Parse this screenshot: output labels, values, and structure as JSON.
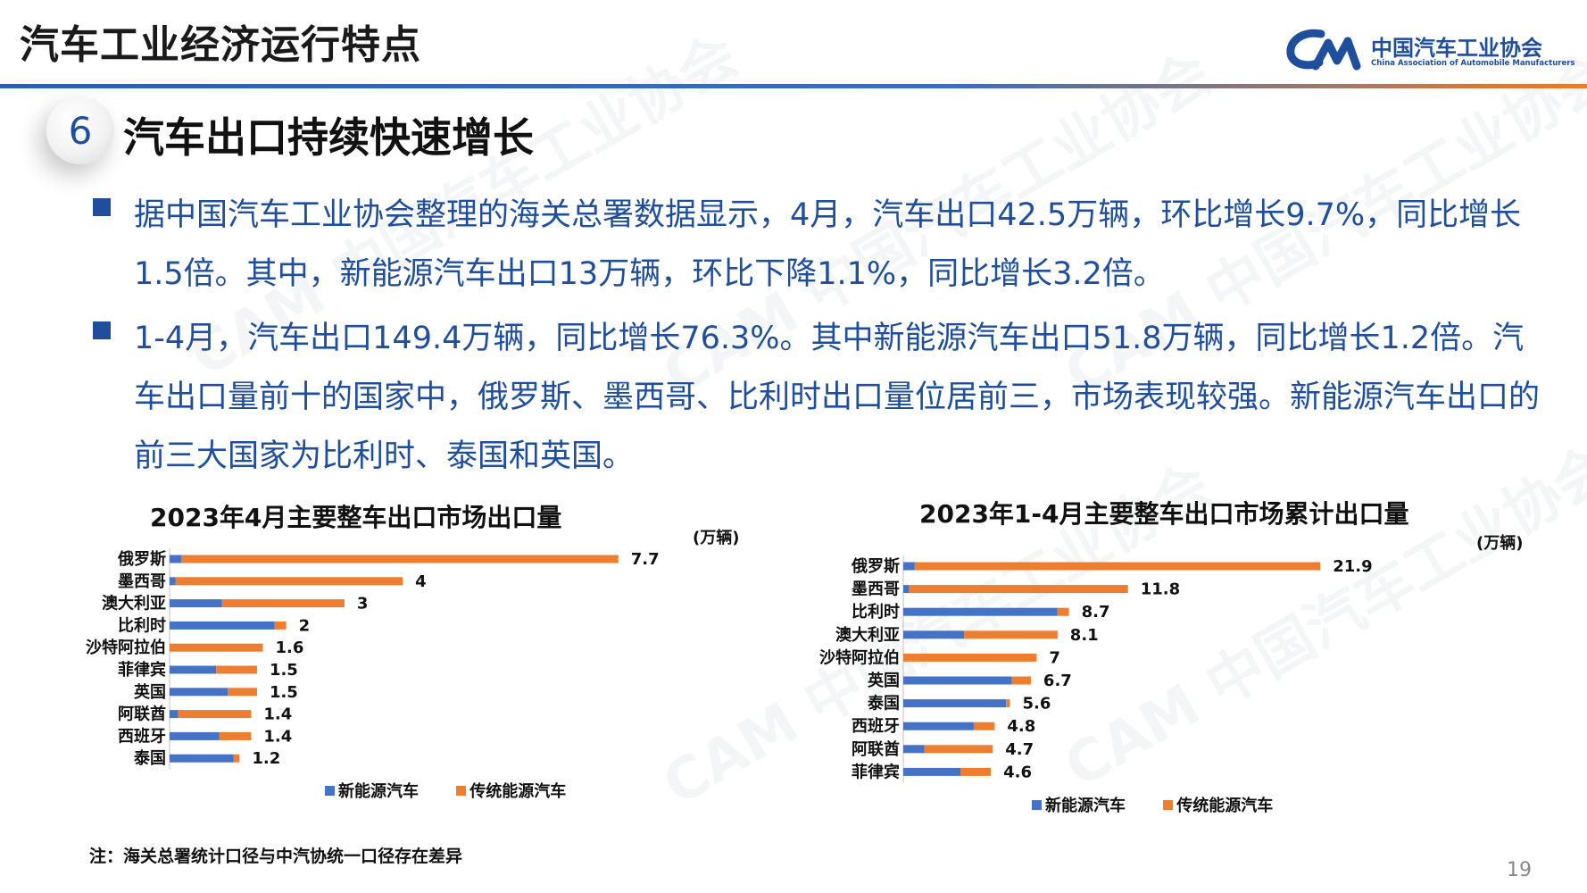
{
  "header": {
    "title": "汽车工业经济运行特点"
  },
  "logo": {
    "cn": "中国汽车工业协会",
    "en": "China Association of Automobile Manufacturers"
  },
  "section": {
    "number": "6",
    "title": "汽车出口持续快速增长"
  },
  "paragraphs": [
    "据中国汽车工业协会整理的海关总署数据显示，4月，汽车出口42.5万辆，环比增长9.7%，同比增长1.5倍。其中，新能源汽车出口13万辆，环比下降1.1%，同比增长3.2倍。",
    "1-4月，汽车出口149.4万辆，同比增长76.3%。其中新能源汽车出口51.8万辆，同比增长1.2倍。汽车出口量前十的国家中，俄罗斯、墨西哥、比利时出口量位居前三，市场表现较强。新能源汽车出口的前三大国家为比利时、泰国和英国。"
  ],
  "chart_data": [
    {
      "type": "bar",
      "orientation": "horizontal",
      "stacked": true,
      "title": "2023年4月主要整车出口市场出口量",
      "unit": "(万辆)",
      "categories": [
        "俄罗斯",
        "墨西哥",
        "澳大利亚",
        "比利时",
        "沙特阿拉伯",
        "菲律宾",
        "英国",
        "阿联酋",
        "西班牙",
        "泰国"
      ],
      "totals": [
        7.7,
        4,
        3,
        2,
        1.6,
        1.5,
        1.5,
        1.4,
        1.4,
        1.2
      ],
      "series": [
        {
          "name": "新能源汽车",
          "color": "#4472c4",
          "values": [
            0.2,
            0.1,
            0.9,
            1.8,
            0.0,
            0.8,
            1.0,
            0.15,
            0.85,
            1.1
          ]
        },
        {
          "name": "传统能源汽车",
          "color": "#ed7d31",
          "values": [
            7.5,
            3.9,
            2.1,
            0.2,
            1.6,
            0.7,
            0.5,
            1.25,
            0.55,
            0.1
          ]
        }
      ],
      "xlim": [
        0,
        8.5
      ]
    },
    {
      "type": "bar",
      "orientation": "horizontal",
      "stacked": true,
      "title": "2023年1-4月主要整车出口市场累计出口量",
      "unit": "(万辆)",
      "categories": [
        "俄罗斯",
        "墨西哥",
        "比利时",
        "澳大利亚",
        "沙特阿拉伯",
        "英国",
        "泰国",
        "西班牙",
        "阿联酋",
        "菲律宾"
      ],
      "totals": [
        21.9,
        11.8,
        8.7,
        8.1,
        7,
        6.7,
        5.6,
        4.8,
        4.7,
        4.6
      ],
      "series": [
        {
          "name": "新能源汽车",
          "color": "#4472c4",
          "values": [
            0.6,
            0.3,
            8.1,
            3.2,
            0.0,
            5.7,
            5.4,
            3.7,
            1.1,
            3.0
          ]
        },
        {
          "name": "传统能源汽车",
          "color": "#ed7d31",
          "values": [
            21.3,
            11.5,
            0.6,
            4.9,
            7.0,
            1.0,
            0.2,
            1.1,
            3.6,
            1.6
          ]
        }
      ],
      "xlim": [
        0,
        24
      ]
    }
  ],
  "note": "注：海关总署统计口径与中汽协统一口径存在差异",
  "page_number": "19"
}
